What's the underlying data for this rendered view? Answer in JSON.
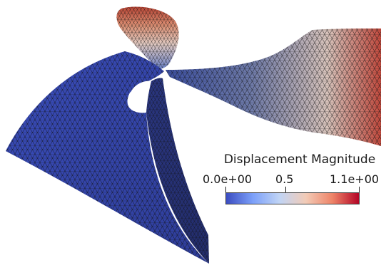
{
  "colorbar": {
    "title": "Displacement Magnitude",
    "min_label": "0.0e+00",
    "mid_label": "0.5",
    "max_label": "1.1e+00",
    "min_value": 0.0,
    "mid_value": 0.5,
    "max_value": 1.1,
    "colormap": [
      "#3b4cc0",
      "#7b9ff9",
      "#c0d4f5",
      "#f2cbb7",
      "#ee8468",
      "#b40426"
    ]
  },
  "colors": {
    "background": "#ffffff",
    "mesh_edge": "#1a1a1a",
    "low": "#3b4cc0",
    "high": "#b40426"
  }
}
